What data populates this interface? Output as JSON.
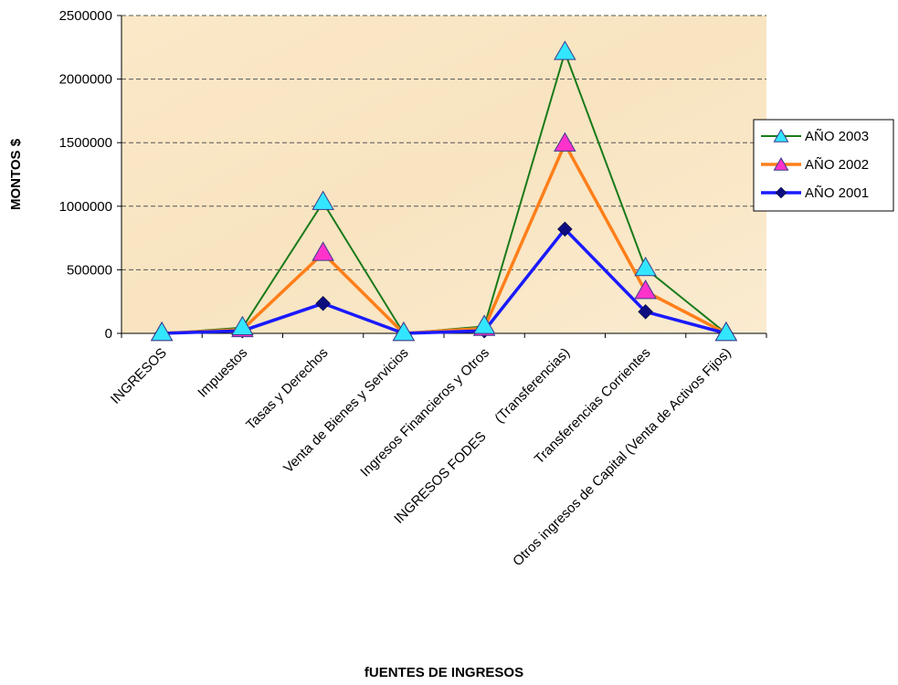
{
  "chart_data": {
    "type": "line",
    "title": "",
    "xlabel": "fUENTES DE INGRESOS",
    "ylabel": "MONTOS $",
    "categories": [
      "INGRESOS",
      "Impuestos",
      "Tasas y Derechos",
      "Venta de Bienes y Servicios",
      "Ingresos Financieros y Otros",
      "INGRESOS FODES     (Transferencias)",
      "Transferencias Corrientes",
      "Otros ingresos de Capital (Venta de Activos Fijos)"
    ],
    "ylim": [
      0,
      2500000
    ],
    "yticks": [
      0,
      500000,
      1000000,
      1500000,
      2000000,
      2500000
    ],
    "ytick_labels": [
      "0",
      "500000",
      "1000000",
      "1500000",
      "2000000",
      "2500000"
    ],
    "grid": true,
    "legend_position": "right",
    "series": [
      {
        "name": "AÑO 2003",
        "line_color": "#1a7a1a",
        "marker": "triangle",
        "marker_color": "#33e6ff",
        "values": [
          0,
          45000,
          1030000,
          0,
          55000,
          2210000,
          510000,
          0
        ]
      },
      {
        "name": "AÑO 2002",
        "line_color": "#ff7f1a",
        "marker": "triangle",
        "marker_color": "#ff33cc",
        "values": [
          0,
          30000,
          630000,
          0,
          40000,
          1490000,
          330000,
          0
        ]
      },
      {
        "name": "AÑO 2001",
        "line_color": "#1a1aff",
        "marker": "diamond",
        "marker_color": "#0d0d80",
        "values": [
          0,
          20000,
          235000,
          0,
          20000,
          820000,
          170000,
          0
        ]
      }
    ]
  }
}
